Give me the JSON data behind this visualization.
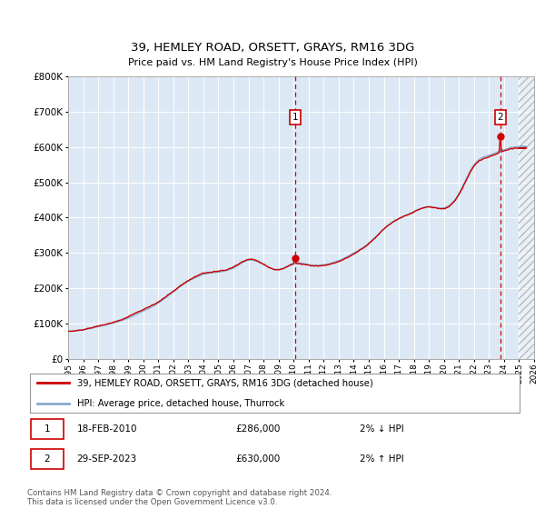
{
  "title1": "39, HEMLEY ROAD, ORSETT, GRAYS, RM16 3DG",
  "title2": "Price paid vs. HM Land Registry's House Price Index (HPI)",
  "legend1": "39, HEMLEY ROAD, ORSETT, GRAYS, RM16 3DG (detached house)",
  "legend2": "HPI: Average price, detached house, Thurrock",
  "annotation_note": "Contains HM Land Registry data © Crown copyright and database right 2024.\nThis data is licensed under the Open Government Licence v3.0.",
  "transaction1_label": "1",
  "transaction1_date": "18-FEB-2010",
  "transaction1_price": "£286,000",
  "transaction1_hpi": "2% ↓ HPI",
  "transaction1_year": 2010.125,
  "transaction1_value": 286000,
  "transaction2_label": "2",
  "transaction2_date": "29-SEP-2023",
  "transaction2_price": "£630,000",
  "transaction2_hpi": "2% ↑ HPI",
  "transaction2_year": 2023.75,
  "transaction2_value": 630000,
  "ylim_min": 0,
  "ylim_max": 800000,
  "xlim_min": 1995.0,
  "xlim_max": 2026.0,
  "hatch_start": 2025.0,
  "chart_bg": "#dce9f5",
  "line_color_property": "#cc0000",
  "line_color_hpi": "#88aacc",
  "grid_color": "#ffffff",
  "marker_color": "#cc0000",
  "marker_box_color": "#cc0000",
  "fig_bg": "#ffffff"
}
